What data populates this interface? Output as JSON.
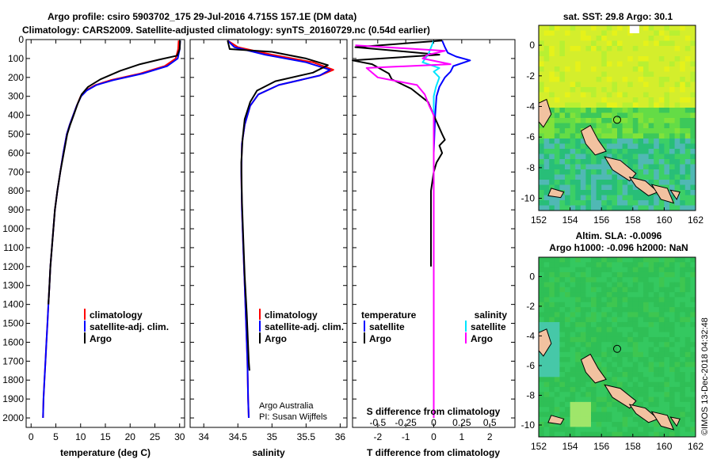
{
  "title_line1": "Argo profile: csiro 5903702_175 29-Jul-2016 4.715S 157.1E (DM data)",
  "title_line2": "Climatology: CARS2009. Satellite-adjusted climatology: synTS_20160729.nc (0.54d earlier)",
  "depth_ticks": [
    "0",
    "100",
    "200",
    "300",
    "400",
    "500",
    "600",
    "700",
    "800",
    "900",
    "1000",
    "1100",
    "1200",
    "1300",
    "1400",
    "1500",
    "1600",
    "1700",
    "1800",
    "1900",
    "2000"
  ],
  "credit": "©IMOS 13-Dec-2018 04:32:48",
  "colors": {
    "climatology": "#ff0000",
    "satellite": "#0000ff",
    "argo": "#000000",
    "argo_diff": "#ff00ff",
    "sal_sat_diff": "#00e5ff",
    "land": "#f2c2a0"
  },
  "panels": {
    "temperature": {
      "xlabel": "temperature (deg C)",
      "xticks": [
        "0",
        "5",
        "10",
        "15",
        "20",
        "25",
        "30"
      ],
      "legend": [
        "climatology",
        "satellite-adj. clim.",
        "Argo"
      ]
    },
    "salinity": {
      "xlabel": "salinity",
      "xticks": [
        "34",
        "34.5",
        "35",
        "35.5",
        "36"
      ],
      "legend": [
        "climatology",
        "satellite-adj. clim.",
        "Argo"
      ],
      "note1": "Argo Australia",
      "note2": "PI: Susan Wijffels"
    },
    "difference": {
      "xlabel": "T difference from climatology",
      "xticks": [
        "-2",
        "-1",
        "0",
        "1",
        "2"
      ],
      "top_label": "S difference from climatology",
      "top_ticks": [
        "-0.5",
        "-0.25",
        "0",
        "0.25",
        "0.5"
      ],
      "leg_left_title": "temperature",
      "leg_left": [
        "satellite",
        "Argo"
      ],
      "leg_right_title": "salinity",
      "leg_right": [
        "satellite",
        "Argo"
      ]
    },
    "sst_map": {
      "title": "sat. SST: 29.8 Argo: 30.1",
      "yticks": [
        "0",
        "-2",
        "-4",
        "-6",
        "-8",
        "-10"
      ],
      "xticks": [
        "152",
        "154",
        "156",
        "158",
        "160",
        "162"
      ]
    },
    "sla_map": {
      "title1": "Altim. SLA: -0.0096",
      "title2": "Argo h1000: -0.096 h2000: NaN",
      "yticks": [
        "0",
        "-2",
        "-4",
        "-6",
        "-8",
        "-10"
      ],
      "xticks": [
        "152",
        "154",
        "156",
        "158",
        "160",
        "162"
      ]
    }
  },
  "chart_data": [
    {
      "type": "line",
      "xlabel": "temperature (deg C)",
      "ylabel": "",
      "xlim": [
        -1,
        31
      ],
      "ylim": [
        2050,
        0
      ],
      "y_axis": "depth",
      "series": [
        {
          "name": "climatology",
          "points": [
            [
              29.8,
              5
            ],
            [
              29.7,
              50
            ],
            [
              29.2,
              100
            ],
            [
              27,
              140
            ],
            [
              22,
              180
            ],
            [
              16,
              215
            ],
            [
              13,
              240
            ],
            [
              11,
              270
            ],
            [
              10,
              300
            ],
            [
              9.2,
              350
            ],
            [
              8.5,
              400
            ],
            [
              7.8,
              450
            ],
            [
              7.2,
              500
            ],
            [
              6.5,
              600
            ],
            [
              5.9,
              700
            ],
            [
              5.3,
              800
            ],
            [
              4.8,
              900
            ],
            [
              4.5,
              1000
            ],
            [
              4.2,
              1100
            ],
            [
              3.9,
              1200
            ],
            [
              3.7,
              1300
            ],
            [
              3.5,
              1400
            ],
            [
              3.3,
              1500
            ],
            [
              3.1,
              1600
            ],
            [
              2.9,
              1700
            ],
            [
              2.7,
              1800
            ],
            [
              2.5,
              1900
            ],
            [
              2.4,
              2000
            ]
          ]
        },
        {
          "name": "satellite-adj. clim.",
          "points": [
            [
              30.1,
              5
            ],
            [
              30,
              50
            ],
            [
              29.6,
              100
            ],
            [
              27.5,
              140
            ],
            [
              22.5,
              180
            ],
            [
              16.5,
              215
            ],
            [
              13.2,
              240
            ],
            [
              11.2,
              270
            ],
            [
              10.1,
              300
            ],
            [
              9.2,
              350
            ],
            [
              8.5,
              400
            ],
            [
              7.8,
              450
            ],
            [
              7.2,
              500
            ],
            [
              6.5,
              600
            ],
            [
              5.9,
              700
            ],
            [
              5.3,
              800
            ],
            [
              4.8,
              900
            ],
            [
              4.5,
              1000
            ],
            [
              4.2,
              1100
            ],
            [
              3.9,
              1200
            ],
            [
              3.7,
              1300
            ],
            [
              3.5,
              1400
            ],
            [
              3.3,
              1500
            ],
            [
              3.1,
              1600
            ],
            [
              2.9,
              1700
            ],
            [
              2.7,
              1800
            ],
            [
              2.5,
              1900
            ],
            [
              2.4,
              2000
            ]
          ]
        },
        {
          "name": "Argo",
          "points": [
            [
              30.1,
              5
            ],
            [
              30,
              50
            ],
            [
              29.5,
              85
            ],
            [
              26,
              105
            ],
            [
              22,
              130
            ],
            [
              18,
              165
            ],
            [
              14,
              210
            ],
            [
              11.5,
              250
            ],
            [
              10.2,
              290
            ],
            [
              9.4,
              340
            ],
            [
              8.6,
              400
            ],
            [
              7.9,
              450
            ],
            [
              7.3,
              500
            ],
            [
              6.6,
              600
            ],
            [
              5.9,
              700
            ],
            [
              5.3,
              800
            ],
            [
              4.8,
              900
            ],
            [
              4.5,
              1000
            ],
            [
              4.2,
              1100
            ],
            [
              3.9,
              1200
            ],
            [
              3.7,
              1300
            ],
            [
              3.5,
              1400
            ]
          ]
        }
      ]
    },
    {
      "type": "line",
      "xlabel": "salinity",
      "ylabel": "",
      "xlim": [
        33.8,
        36.1
      ],
      "ylim": [
        2050,
        0
      ],
      "y_axis": "depth",
      "series": [
        {
          "name": "climatology",
          "points": [
            [
              34.35,
              5
            ],
            [
              34.5,
              40
            ],
            [
              35.0,
              80
            ],
            [
              35.6,
              120
            ],
            [
              35.9,
              160
            ],
            [
              35.7,
              190
            ],
            [
              35.1,
              240
            ],
            [
              34.8,
              290
            ],
            [
              34.68,
              350
            ],
            [
              34.6,
              450
            ],
            [
              34.56,
              550
            ],
            [
              34.55,
              700
            ],
            [
              34.56,
              900
            ],
            [
              34.58,
              1100
            ],
            [
              34.6,
              1300
            ],
            [
              34.62,
              1500
            ],
            [
              34.64,
              1700
            ],
            [
              34.65,
              1900
            ],
            [
              34.66,
              2000
            ]
          ]
        },
        {
          "name": "satellite-adj. clim.",
          "points": [
            [
              34.35,
              5
            ],
            [
              34.45,
              40
            ],
            [
              34.9,
              80
            ],
            [
              35.5,
              120
            ],
            [
              35.85,
              160
            ],
            [
              35.7,
              190
            ],
            [
              35.1,
              240
            ],
            [
              34.8,
              290
            ],
            [
              34.68,
              350
            ],
            [
              34.6,
              450
            ],
            [
              34.56,
              550
            ],
            [
              34.55,
              700
            ],
            [
              34.56,
              900
            ],
            [
              34.58,
              1100
            ],
            [
              34.6,
              1300
            ],
            [
              34.62,
              1500
            ],
            [
              34.64,
              1700
            ],
            [
              34.65,
              1900
            ],
            [
              34.66,
              2000
            ]
          ]
        },
        {
          "name": "Argo",
          "points": [
            [
              34.35,
              5
            ],
            [
              34.38,
              50
            ],
            [
              35.0,
              65
            ],
            [
              35.5,
              100
            ],
            [
              35.82,
              135
            ],
            [
              35.6,
              175
            ],
            [
              35.05,
              220
            ],
            [
              34.78,
              270
            ],
            [
              34.68,
              330
            ],
            [
              34.6,
              420
            ],
            [
              34.57,
              520
            ],
            [
              34.55,
              650
            ],
            [
              34.56,
              850
            ],
            [
              34.58,
              1050
            ],
            [
              34.6,
              1250
            ],
            [
              34.63,
              1450
            ],
            [
              34.66,
              1700
            ],
            [
              34.67,
              1750
            ]
          ]
        }
      ]
    },
    {
      "type": "line",
      "xlabel": "T difference from climatology",
      "ylabel": "",
      "xlim": [
        -2.9,
        2.9
      ],
      "ylim": [
        2050,
        0
      ],
      "y_axis": "depth",
      "top_axis": {
        "label": "S difference from climatology",
        "xlim": [
          -0.725,
          0.725
        ]
      },
      "series": [
        {
          "name": "temperature satellite",
          "axis": "T",
          "points": [
            [
              0.3,
              5
            ],
            [
              0.4,
              40
            ],
            [
              0.5,
              70
            ],
            [
              0.8,
              90
            ],
            [
              1.3,
              110
            ],
            [
              0.7,
              140
            ],
            [
              0.6,
              170
            ],
            [
              0.4,
              200
            ],
            [
              0.2,
              250
            ],
            [
              0.1,
              300
            ],
            [
              0.05,
              400
            ],
            [
              0,
              600
            ],
            [
              0,
              2000
            ]
          ]
        },
        {
          "name": "temperature Argo",
          "axis": "T",
          "points": [
            [
              0.3,
              5
            ],
            [
              -2.8,
              40
            ],
            [
              0.2,
              80
            ],
            [
              -2.9,
              110
            ],
            [
              -2.2,
              130
            ],
            [
              -1.6,
              180
            ],
            [
              -1.5,
              210
            ],
            [
              -0.8,
              260
            ],
            [
              -0.2,
              330
            ],
            [
              0,
              400
            ],
            [
              0.3,
              500
            ],
            [
              0.4,
              530
            ],
            [
              0.2,
              560
            ],
            [
              0.3,
              600
            ],
            [
              0.1,
              650
            ],
            [
              0,
              700
            ],
            [
              -0.1,
              800
            ],
            [
              -0.1,
              1000
            ],
            [
              -0.1,
              1200
            ]
          ]
        },
        {
          "name": "salinity satellite",
          "axis": "S",
          "points": [
            [
              0,
              5
            ],
            [
              -0.05,
              80
            ],
            [
              -0.1,
              120
            ],
            [
              0.05,
              150
            ],
            [
              0,
              170
            ],
            [
              0.05,
              200
            ],
            [
              0.02,
              250
            ],
            [
              0,
              300
            ],
            [
              0,
              2000
            ]
          ]
        },
        {
          "name": "salinity Argo",
          "axis": "S",
          "points": [
            [
              -0.7,
              30
            ],
            [
              0.1,
              60
            ],
            [
              -0.05,
              80
            ],
            [
              -0.1,
              100
            ],
            [
              0.15,
              130
            ],
            [
              -0.6,
              150
            ],
            [
              -0.5,
              200
            ],
            [
              -0.15,
              240
            ],
            [
              -0.08,
              290
            ],
            [
              -0.04,
              350
            ],
            [
              0,
              400
            ],
            [
              0,
              2000
            ]
          ]
        }
      ]
    }
  ]
}
